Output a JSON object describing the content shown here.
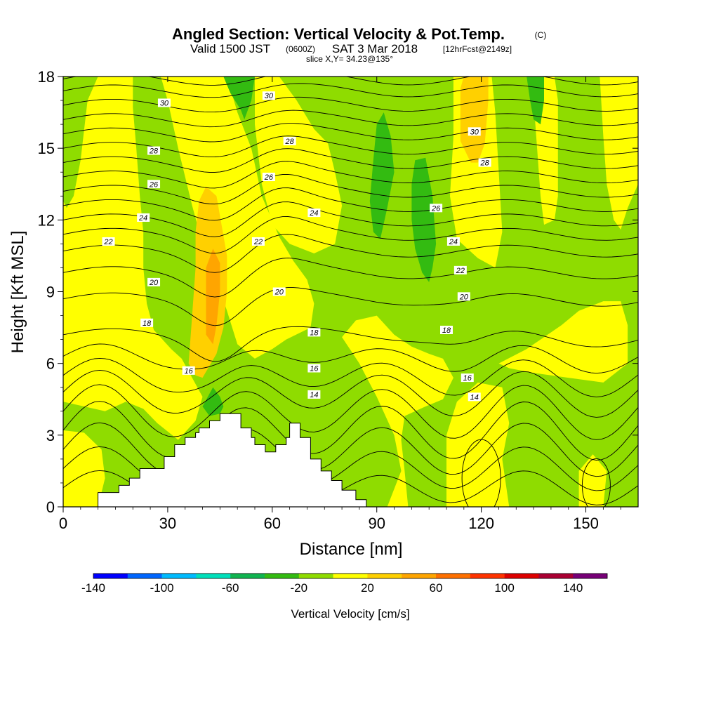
{
  "chart_data": {
    "type": "heatmap",
    "title_main": "Angled Section: Vertical Velocity & Pot.Temp.",
    "title_copyright": "(C)",
    "title_valid_pre": "Valid 1500 JST",
    "title_valid_z": "(0600Z)",
    "title_valid_date": "SAT 3 Mar 2018",
    "title_fcst": "[12hrFcst@2149z]",
    "title_slice": "slice X,Y= 34.23@135°",
    "xlabel": "Distance [nm]",
    "ylabel": "Height [Kft MSL]",
    "xlim": [
      0,
      165
    ],
    "ylim": [
      0,
      18
    ],
    "xticks": [
      "0",
      "30",
      "60",
      "90",
      "120",
      "150"
    ],
    "yticks": [
      "0",
      "3",
      "6",
      "9",
      "12",
      "15",
      "18"
    ],
    "colorbar": {
      "label": "Vertical Velocity [cm/s]",
      "tick_labels": [
        "-140",
        "-100",
        "-60",
        "-20",
        "20",
        "60",
        "100",
        "140"
      ],
      "colors": [
        "#0000ff",
        "#0066ff",
        "#00bbff",
        "#00e0bb",
        "#10b450",
        "#33bb11",
        "#8fdc00",
        "#ffff00",
        "#ffd000",
        "#ffa500",
        "#ff7000",
        "#ff3300",
        "#dd0000",
        "#aa0033",
        "#770077"
      ]
    },
    "colors": {
      "lime": "#8fdc00",
      "yellow": "#ffff00",
      "gold": "#ffd000",
      "orange": "#ffa500",
      "green": "#33bb11",
      "terrain": "#ffffff"
    },
    "theta_contour_labels": [
      {
        "text": "30",
        "x": 29,
        "y": 16.9
      },
      {
        "text": "28",
        "x": 26,
        "y": 14.9
      },
      {
        "text": "26",
        "x": 26,
        "y": 13.5
      },
      {
        "text": "24",
        "x": 23,
        "y": 12.1
      },
      {
        "text": "22",
        "x": 13,
        "y": 11.1
      },
      {
        "text": "20",
        "x": 26,
        "y": 9.4
      },
      {
        "text": "18",
        "x": 24,
        "y": 7.7
      },
      {
        "text": "16",
        "x": 36,
        "y": 5.7
      },
      {
        "text": "30",
        "x": 59,
        "y": 17.2
      },
      {
        "text": "28",
        "x": 65,
        "y": 15.3
      },
      {
        "text": "26",
        "x": 59,
        "y": 13.8
      },
      {
        "text": "24",
        "x": 72,
        "y": 12.3
      },
      {
        "text": "22",
        "x": 56,
        "y": 11.1
      },
      {
        "text": "20",
        "x": 62,
        "y": 9.0
      },
      {
        "text": "18",
        "x": 72,
        "y": 7.3
      },
      {
        "text": "16",
        "x": 72,
        "y": 5.8
      },
      {
        "text": "14",
        "x": 72,
        "y": 4.7
      },
      {
        "text": "30",
        "x": 118,
        "y": 15.7
      },
      {
        "text": "28",
        "x": 121,
        "y": 14.4
      },
      {
        "text": "26",
        "x": 107,
        "y": 12.5
      },
      {
        "text": "24",
        "x": 112,
        "y": 11.1
      },
      {
        "text": "22",
        "x": 114,
        "y": 9.9
      },
      {
        "text": "20",
        "x": 115,
        "y": 8.8
      },
      {
        "text": "18",
        "x": 110,
        "y": 7.4
      },
      {
        "text": "16",
        "x": 116,
        "y": 5.4
      },
      {
        "text": "14",
        "x": 118,
        "y": 4.6
      }
    ],
    "theta_levels": [
      7.2,
      8.7,
      9.8,
      10.7,
      11.4,
      12.0,
      12.6,
      13.2,
      13.8,
      14.4,
      15.0,
      15.6,
      16.2,
      16.8,
      17.4,
      17.9
    ],
    "terrain_profile": {
      "x": [
        0,
        10,
        10,
        16,
        16,
        19,
        19,
        22,
        22,
        29,
        29,
        32,
        32,
        35,
        35,
        38,
        38,
        39,
        39,
        42,
        42,
        45,
        45,
        51,
        51,
        54,
        54,
        55,
        55,
        58,
        58,
        61,
        61,
        64,
        64,
        65,
        65,
        68,
        68,
        71,
        71,
        74,
        74,
        77,
        77,
        80,
        80,
        84,
        84,
        87,
        87,
        91,
        91,
        165
      ],
      "y": [
        0,
        0,
        0.6,
        0.6,
        0.9,
        0.9,
        1.2,
        1.2,
        1.6,
        1.6,
        2.1,
        2.1,
        2.6,
        2.6,
        2.9,
        2.9,
        3.1,
        3.1,
        3.3,
        3.3,
        3.6,
        3.6,
        3.9,
        3.9,
        3.3,
        3.3,
        2.9,
        2.9,
        2.6,
        2.6,
        2.3,
        2.3,
        2.6,
        2.6,
        2.9,
        2.9,
        3.5,
        3.5,
        2.9,
        2.9,
        2.0,
        2.0,
        1.5,
        1.5,
        1.1,
        1.1,
        0.7,
        0.7,
        0.3,
        0.3,
        0,
        0,
        0,
        0
      ]
    },
    "regions": [
      {
        "fill": "lime",
        "pts": [
          [
            0,
            0
          ],
          [
            165,
            0
          ],
          [
            165,
            18
          ],
          [
            0,
            18
          ]
        ]
      },
      {
        "fill": "yellow",
        "pts": [
          [
            0,
            0
          ],
          [
            10,
            0
          ],
          [
            12,
            1.2
          ],
          [
            11,
            2.4
          ],
          [
            6,
            3.1
          ],
          [
            0,
            3.2
          ]
        ]
      },
      {
        "fill": "yellow",
        "pts": [
          [
            0,
            4.4
          ],
          [
            6,
            4.2
          ],
          [
            12,
            4.0
          ],
          [
            18,
            4.4
          ],
          [
            23,
            4.1
          ],
          [
            27,
            3.5
          ],
          [
            33,
            2.8
          ],
          [
            38,
            3.6
          ],
          [
            40,
            4.6
          ],
          [
            37,
            5.4
          ],
          [
            34,
            6.2
          ],
          [
            31,
            6.6
          ],
          [
            26,
            7.4
          ],
          [
            24,
            8.5
          ],
          [
            23,
            10.0
          ],
          [
            23,
            11.5
          ],
          [
            22,
            13.0
          ],
          [
            21,
            15.0
          ],
          [
            20,
            16.7
          ],
          [
            20,
            18
          ],
          [
            10,
            18
          ],
          [
            7,
            17.0
          ],
          [
            5,
            14.5
          ],
          [
            3,
            13.0
          ],
          [
            1,
            12.5
          ],
          [
            0,
            12.8
          ]
        ]
      },
      {
        "fill": "yellow",
        "pts": [
          [
            20,
            18
          ],
          [
            28,
            18
          ],
          [
            30,
            17
          ],
          [
            33,
            15
          ],
          [
            37,
            12.6
          ],
          [
            40,
            11
          ],
          [
            44,
            9.5
          ],
          [
            47,
            8.2
          ],
          [
            50,
            6.8
          ],
          [
            55,
            6.2
          ],
          [
            60,
            6.6
          ],
          [
            64,
            7.0
          ],
          [
            71,
            7.5
          ],
          [
            72,
            8.5
          ],
          [
            70,
            9.5
          ],
          [
            66,
            10.3
          ],
          [
            62,
            11.3
          ],
          [
            57,
            13.0
          ],
          [
            54,
            15.0
          ],
          [
            50,
            16.5
          ],
          [
            47,
            18
          ]
        ]
      },
      {
        "fill": "yellow",
        "pts": [
          [
            55,
            18
          ],
          [
            62,
            18
          ],
          [
            67,
            17
          ],
          [
            72,
            15.8
          ],
          [
            76,
            15.2
          ],
          [
            78,
            14
          ],
          [
            80,
            12.6
          ],
          [
            78,
            11.0
          ],
          [
            72,
            10.6
          ],
          [
            65,
            11.0
          ],
          [
            60,
            11.8
          ],
          [
            57,
            13.5
          ],
          [
            55,
            16.0
          ]
        ]
      },
      {
        "fill": "yellow",
        "pts": [
          [
            93,
            0
          ],
          [
            97,
            1.5
          ],
          [
            95,
            3.0
          ],
          [
            90,
            4.6
          ],
          [
            85,
            6.0
          ],
          [
            80,
            7.1
          ],
          [
            84,
            7.8
          ],
          [
            90,
            8.0
          ],
          [
            95,
            7.2
          ],
          [
            100,
            6.7
          ],
          [
            105,
            6.4
          ],
          [
            109,
            6.2
          ],
          [
            112,
            5.4
          ],
          [
            109,
            4.5
          ],
          [
            104,
            4.2
          ],
          [
            98,
            3.8
          ],
          [
            97,
            2.8
          ],
          [
            98,
            1.5
          ],
          [
            99,
            0
          ]
        ]
      },
      {
        "fill": "yellow",
        "pts": [
          [
            110,
            0
          ],
          [
            128,
            0
          ],
          [
            126,
            2.0
          ],
          [
            128,
            3.5
          ],
          [
            126,
            5.0
          ],
          [
            119,
            5.2
          ],
          [
            113,
            4.4
          ],
          [
            110,
            3.0
          ]
        ]
      },
      {
        "fill": "yellow",
        "pts": [
          [
            112,
            18
          ],
          [
            112,
            15.5
          ],
          [
            111,
            13.0
          ],
          [
            113,
            11.2
          ],
          [
            119,
            10.4
          ],
          [
            124,
            10.0
          ],
          [
            126,
            11.5
          ],
          [
            125,
            14.0
          ],
          [
            124,
            16.5
          ],
          [
            123,
            18
          ]
        ]
      },
      {
        "fill": "yellow",
        "pts": [
          [
            125,
            6.0
          ],
          [
            133,
            6.6
          ],
          [
            143,
            7.6
          ],
          [
            148,
            8.2
          ],
          [
            155,
            8.6
          ],
          [
            160,
            8.6
          ],
          [
            162,
            7.6
          ],
          [
            162,
            6.0
          ],
          [
            155,
            5.2
          ],
          [
            145,
            5.4
          ],
          [
            135,
            5.6
          ],
          [
            128,
            5.8
          ]
        ]
      },
      {
        "fill": "yellow",
        "pts": [
          [
            135,
            18
          ],
          [
            141,
            18
          ],
          [
            142,
            17
          ],
          [
            142,
            15
          ],
          [
            142,
            13
          ],
          [
            141,
            12.0
          ],
          [
            138,
            11.8
          ],
          [
            137,
            13
          ],
          [
            136,
            15
          ],
          [
            135,
            17
          ]
        ]
      },
      {
        "fill": "yellow",
        "pts": [
          [
            154,
            18
          ],
          [
            165,
            18
          ],
          [
            165,
            13.5
          ],
          [
            162,
            12.5
          ],
          [
            160,
            11.6
          ],
          [
            158,
            12.0
          ],
          [
            156,
            13.5
          ],
          [
            155,
            15.5
          ]
        ]
      },
      {
        "fill": "yellow",
        "pts": [
          [
            148,
            0
          ],
          [
            155,
            0
          ],
          [
            156,
            1.5
          ],
          [
            152,
            2.2
          ],
          [
            148,
            1.5
          ]
        ]
      },
      {
        "fill": "gold",
        "pts": [
          [
            36,
            6.0
          ],
          [
            37,
            8.0
          ],
          [
            38,
            10.0
          ],
          [
            38,
            11.5
          ],
          [
            39,
            12.8
          ],
          [
            41,
            13.4
          ],
          [
            44,
            13.0
          ],
          [
            47,
            10.5
          ],
          [
            47,
            9.0
          ],
          [
            46,
            7.5
          ],
          [
            44,
            6.4
          ],
          [
            40,
            5.4
          ],
          [
            38,
            5.5
          ]
        ]
      },
      {
        "fill": "gold",
        "pts": [
          [
            114,
            15.3
          ],
          [
            114,
            16.5
          ],
          [
            114,
            17.5
          ],
          [
            115,
            18
          ],
          [
            122,
            18
          ],
          [
            122,
            17.0
          ],
          [
            121,
            15.2
          ],
          [
            119,
            14.4
          ],
          [
            117,
            14.4
          ],
          [
            115,
            15.0
          ]
        ]
      },
      {
        "fill": "orange",
        "pts": [
          [
            41,
            7.2
          ],
          [
            41,
            8.8
          ],
          [
            41,
            10.0
          ],
          [
            43,
            10.8
          ],
          [
            45,
            10.2
          ],
          [
            45,
            9.0
          ],
          [
            44,
            7.6
          ],
          [
            43,
            6.8
          ]
        ]
      },
      {
        "fill": "green",
        "pts": [
          [
            44,
            18
          ],
          [
            55,
            18
          ],
          [
            54,
            17.0
          ],
          [
            52,
            16.2
          ],
          [
            51,
            16.6
          ],
          [
            48,
            17.3
          ],
          [
            46,
            18
          ]
        ]
      },
      {
        "fill": "green",
        "pts": [
          [
            88,
            12.8
          ],
          [
            89,
            14.5
          ],
          [
            90,
            16.0
          ],
          [
            92,
            16.5
          ],
          [
            94,
            15.5
          ],
          [
            95,
            14.0
          ],
          [
            93,
            12.5
          ],
          [
            91,
            11.2
          ],
          [
            89,
            11.5
          ]
        ]
      },
      {
        "fill": "green",
        "pts": [
          [
            100,
            13.5
          ],
          [
            101,
            14.5
          ],
          [
            104,
            14.6
          ],
          [
            106,
            13.0
          ],
          [
            107,
            11.0
          ],
          [
            106,
            10.0
          ],
          [
            105,
            9.4
          ],
          [
            103,
            9.8
          ],
          [
            101,
            10.8
          ],
          [
            100,
            12.0
          ]
        ]
      },
      {
        "fill": "green",
        "pts": [
          [
            133,
            18
          ],
          [
            138,
            18
          ],
          [
            138,
            17.0
          ],
          [
            137,
            16.0
          ],
          [
            135,
            16.2
          ],
          [
            134,
            17.0
          ]
        ]
      },
      {
        "fill": "green",
        "pts": [
          [
            40,
            4.2
          ],
          [
            43,
            5.0
          ],
          [
            45,
            4.6
          ],
          [
            46,
            4.2
          ],
          [
            45,
            3.9
          ],
          [
            42,
            3.8
          ]
        ]
      }
    ]
  }
}
